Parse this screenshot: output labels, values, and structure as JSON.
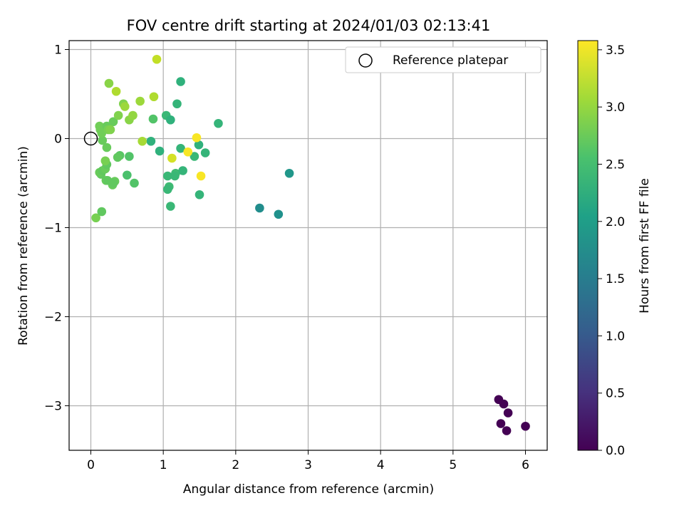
{
  "chart_data": {
    "type": "scatter",
    "title": "FOV centre drift starting at 2024/01/03 02:13:41",
    "xlabel": "Angular distance from reference (arcmin)",
    "ylabel": "Rotation from reference (arcmin)",
    "xlim": [
      -0.3,
      6.3
    ],
    "ylim": [
      -3.5,
      1.1
    ],
    "xticks": [
      0,
      1,
      2,
      3,
      4,
      5,
      6
    ],
    "xtick_labels": [
      "0",
      "1",
      "2",
      "3",
      "4",
      "5",
      "6"
    ],
    "yticks": [
      1,
      0,
      -1,
      -2,
      -3
    ],
    "ytick_labels": [
      "1",
      "0",
      "−1",
      "−2",
      "−3"
    ],
    "grid": true,
    "legend": {
      "location": "top-right",
      "label": "Reference platepar"
    },
    "reference_point": {
      "x": 0,
      "y": 0
    },
    "colorbar": {
      "label": "Hours from first FF file",
      "colormap": "viridis",
      "range": [
        0.0,
        3.58
      ],
      "ticks": [
        0.0,
        0.5,
        1.0,
        1.5,
        2.0,
        2.5,
        3.0,
        3.5
      ],
      "tick_labels": [
        "0.0",
        "0.5",
        "1.0",
        "1.5",
        "2.0",
        "2.5",
        "3.0",
        "3.5"
      ]
    },
    "points": [
      {
        "x": 5.63,
        "y": -2.93,
        "c": 0.0
      },
      {
        "x": 5.7,
        "y": -2.98,
        "c": 0.0
      },
      {
        "x": 5.76,
        "y": -3.08,
        "c": 0.0
      },
      {
        "x": 5.66,
        "y": -3.2,
        "c": 0.0
      },
      {
        "x": 5.74,
        "y": -3.28,
        "c": 0.0
      },
      {
        "x": 6.0,
        "y": -3.23,
        "c": 0.0
      },
      {
        "x": 2.33,
        "y": -0.78,
        "c": 1.75
      },
      {
        "x": 2.59,
        "y": -0.85,
        "c": 1.8
      },
      {
        "x": 2.74,
        "y": -0.39,
        "c": 1.9
      },
      {
        "x": 1.24,
        "y": 0.64,
        "c": 2.3
      },
      {
        "x": 1.19,
        "y": 0.39,
        "c": 2.35
      },
      {
        "x": 1.04,
        "y": 0.26,
        "c": 2.4
      },
      {
        "x": 1.1,
        "y": 0.21,
        "c": 2.3
      },
      {
        "x": 1.76,
        "y": 0.17,
        "c": 2.35
      },
      {
        "x": 0.83,
        "y": -0.03,
        "c": 2.3
      },
      {
        "x": 0.95,
        "y": -0.14,
        "c": 2.3
      },
      {
        "x": 1.24,
        "y": -0.11,
        "c": 2.35
      },
      {
        "x": 1.49,
        "y": -0.07,
        "c": 2.3
      },
      {
        "x": 1.43,
        "y": -0.2,
        "c": 2.4
      },
      {
        "x": 1.58,
        "y": -0.16,
        "c": 2.35
      },
      {
        "x": 1.06,
        "y": -0.42,
        "c": 2.4
      },
      {
        "x": 1.17,
        "y": -0.39,
        "c": 2.45
      },
      {
        "x": 1.27,
        "y": -0.36,
        "c": 2.35
      },
      {
        "x": 1.16,
        "y": -0.42,
        "c": 2.4
      },
      {
        "x": 1.08,
        "y": -0.54,
        "c": 2.45
      },
      {
        "x": 1.06,
        "y": -0.57,
        "c": 2.4
      },
      {
        "x": 1.5,
        "y": -0.63,
        "c": 2.35
      },
      {
        "x": 1.1,
        "y": -0.76,
        "c": 2.4
      },
      {
        "x": 0.86,
        "y": 0.22,
        "c": 2.6
      },
      {
        "x": 0.5,
        "y": -0.41,
        "c": 2.55
      },
      {
        "x": 0.53,
        "y": -0.2,
        "c": 2.6
      },
      {
        "x": 0.6,
        "y": -0.5,
        "c": 2.6
      },
      {
        "x": 0.4,
        "y": -0.19,
        "c": 2.65
      },
      {
        "x": 0.37,
        "y": -0.21,
        "c": 2.7
      },
      {
        "x": 0.33,
        "y": -0.48,
        "c": 2.75
      },
      {
        "x": 0.3,
        "y": -0.52,
        "c": 2.75
      },
      {
        "x": 0.31,
        "y": -0.5,
        "c": 2.7
      },
      {
        "x": 0.21,
        "y": -0.47,
        "c": 2.75
      },
      {
        "x": 0.23,
        "y": -0.47,
        "c": 2.7
      },
      {
        "x": 0.14,
        "y": -0.4,
        "c": 2.7
      },
      {
        "x": 0.12,
        "y": -0.38,
        "c": 2.75
      },
      {
        "x": 0.16,
        "y": -0.36,
        "c": 2.7
      },
      {
        "x": 0.2,
        "y": -0.34,
        "c": 2.75
      },
      {
        "x": 0.22,
        "y": -0.29,
        "c": 2.7
      },
      {
        "x": 0.2,
        "y": -0.25,
        "c": 2.85
      },
      {
        "x": 0.22,
        "y": -0.1,
        "c": 2.75
      },
      {
        "x": 0.16,
        "y": -0.02,
        "c": 2.75
      },
      {
        "x": 0.15,
        "y": 0.06,
        "c": 2.8
      },
      {
        "x": 0.13,
        "y": 0.1,
        "c": 2.8
      },
      {
        "x": 0.12,
        "y": 0.14,
        "c": 2.8
      },
      {
        "x": 0.22,
        "y": 0.14,
        "c": 2.75
      },
      {
        "x": 0.31,
        "y": 0.19,
        "c": 2.75
      },
      {
        "x": 0.07,
        "y": -0.89,
        "c": 2.85
      },
      {
        "x": 0.15,
        "y": -0.82,
        "c": 2.7
      },
      {
        "x": 0.24,
        "y": 0.1,
        "c": 2.85
      },
      {
        "x": 0.27,
        "y": 0.1,
        "c": 2.9
      },
      {
        "x": 0.38,
        "y": 0.26,
        "c": 2.9
      },
      {
        "x": 0.53,
        "y": 0.21,
        "c": 2.95
      },
      {
        "x": 0.58,
        "y": 0.26,
        "c": 3.0
      },
      {
        "x": 0.45,
        "y": 0.39,
        "c": 2.9
      },
      {
        "x": 0.47,
        "y": 0.36,
        "c": 3.05
      },
      {
        "x": 0.25,
        "y": 0.62,
        "c": 2.95
      },
      {
        "x": 0.35,
        "y": 0.53,
        "c": 3.15
      },
      {
        "x": 0.68,
        "y": 0.42,
        "c": 3.05
      },
      {
        "x": 0.87,
        "y": 0.47,
        "c": 3.15
      },
      {
        "x": 0.91,
        "y": 0.89,
        "c": 3.25
      },
      {
        "x": 0.71,
        "y": -0.03,
        "c": 3.1
      },
      {
        "x": 1.12,
        "y": -0.22,
        "c": 3.35
      },
      {
        "x": 1.34,
        "y": -0.15,
        "c": 3.55
      },
      {
        "x": 1.46,
        "y": 0.01,
        "c": 3.55
      },
      {
        "x": 1.52,
        "y": -0.42,
        "c": 3.55
      }
    ]
  }
}
